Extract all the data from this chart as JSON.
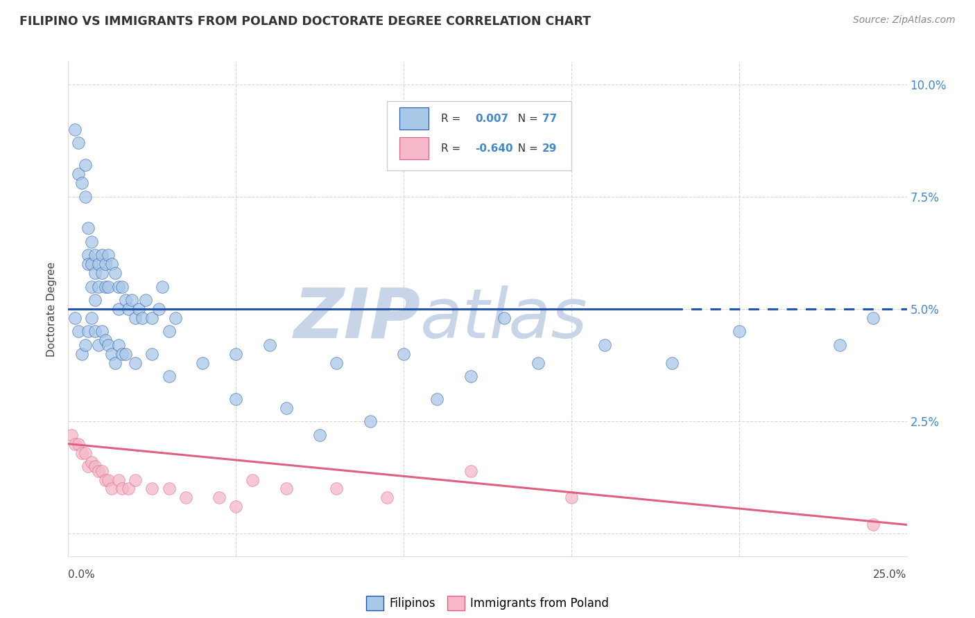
{
  "title": "FILIPINO VS IMMIGRANTS FROM POLAND DOCTORATE DEGREE CORRELATION CHART",
  "source": "Source: ZipAtlas.com",
  "ylabel": "Doctorate Degree",
  "xlim": [
    0.0,
    0.25
  ],
  "ylim": [
    -0.005,
    0.105
  ],
  "xticks": [
    0.0,
    0.05,
    0.1,
    0.15,
    0.2,
    0.25
  ],
  "yticks": [
    0.0,
    0.025,
    0.05,
    0.075,
    0.1
  ],
  "xticklabels": [
    "0.0%",
    "",
    "",
    "",
    "",
    "25.0%"
  ],
  "yticklabels_right": [
    "",
    "2.5%",
    "5.0%",
    "7.5%",
    "10.0%"
  ],
  "legend_labels": [
    "Filipinos",
    "Immigrants from Poland"
  ],
  "r_filipino": 0.007,
  "n_filipino": 77,
  "r_poland": -0.64,
  "n_poland": 29,
  "filipino_color": "#a8c8e8",
  "poland_color": "#f4b8c8",
  "trend_filipino_color": "#2255aa",
  "trend_polish_color": "#e06080",
  "background_color": "#ffffff",
  "grid_color": "#cccccc",
  "watermark_zip": "ZIP",
  "watermark_atlas": "atlas",
  "watermark_color_zip": "#c8d4e8",
  "watermark_color_atlas": "#c8d4e8",
  "title_color": "#333333",
  "source_color": "#888888",
  "tick_color_blue": "#4488cc",
  "tick_color_dark": "#444444",
  "filipino_x": [
    0.002,
    0.003,
    0.003,
    0.004,
    0.005,
    0.005,
    0.006,
    0.006,
    0.006,
    0.007,
    0.007,
    0.007,
    0.008,
    0.008,
    0.008,
    0.009,
    0.009,
    0.01,
    0.01,
    0.011,
    0.011,
    0.012,
    0.012,
    0.013,
    0.014,
    0.015,
    0.015,
    0.016,
    0.017,
    0.018,
    0.019,
    0.02,
    0.021,
    0.022,
    0.023,
    0.025,
    0.027,
    0.028,
    0.03,
    0.032,
    0.002,
    0.003,
    0.004,
    0.005,
    0.006,
    0.007,
    0.008,
    0.009,
    0.01,
    0.011,
    0.012,
    0.013,
    0.014,
    0.015,
    0.016,
    0.017,
    0.02,
    0.025,
    0.03,
    0.04,
    0.05,
    0.06,
    0.08,
    0.1,
    0.12,
    0.14,
    0.13,
    0.16,
    0.18,
    0.05,
    0.065,
    0.075,
    0.09,
    0.11,
    0.2,
    0.23,
    0.24
  ],
  "filipino_y": [
    0.09,
    0.087,
    0.08,
    0.078,
    0.082,
    0.075,
    0.068,
    0.062,
    0.06,
    0.065,
    0.06,
    0.055,
    0.062,
    0.058,
    0.052,
    0.06,
    0.055,
    0.062,
    0.058,
    0.06,
    0.055,
    0.062,
    0.055,
    0.06,
    0.058,
    0.055,
    0.05,
    0.055,
    0.052,
    0.05,
    0.052,
    0.048,
    0.05,
    0.048,
    0.052,
    0.048,
    0.05,
    0.055,
    0.045,
    0.048,
    0.048,
    0.045,
    0.04,
    0.042,
    0.045,
    0.048,
    0.045,
    0.042,
    0.045,
    0.043,
    0.042,
    0.04,
    0.038,
    0.042,
    0.04,
    0.04,
    0.038,
    0.04,
    0.035,
    0.038,
    0.04,
    0.042,
    0.038,
    0.04,
    0.035,
    0.038,
    0.048,
    0.042,
    0.038,
    0.03,
    0.028,
    0.022,
    0.025,
    0.03,
    0.045,
    0.042,
    0.048
  ],
  "poland_x": [
    0.001,
    0.002,
    0.003,
    0.004,
    0.005,
    0.006,
    0.007,
    0.008,
    0.009,
    0.01,
    0.011,
    0.012,
    0.013,
    0.015,
    0.016,
    0.018,
    0.02,
    0.025,
    0.03,
    0.035,
    0.045,
    0.05,
    0.055,
    0.065,
    0.08,
    0.095,
    0.12,
    0.15,
    0.24
  ],
  "poland_y": [
    0.022,
    0.02,
    0.02,
    0.018,
    0.018,
    0.015,
    0.016,
    0.015,
    0.014,
    0.014,
    0.012,
    0.012,
    0.01,
    0.012,
    0.01,
    0.01,
    0.012,
    0.01,
    0.01,
    0.008,
    0.008,
    0.006,
    0.012,
    0.01,
    0.01,
    0.008,
    0.014,
    0.008,
    0.002
  ],
  "trend_filipino_y_start": 0.05,
  "trend_filipino_y_end": 0.05,
  "trend_polish_y_start": 0.02,
  "trend_polish_y_end": 0.002
}
